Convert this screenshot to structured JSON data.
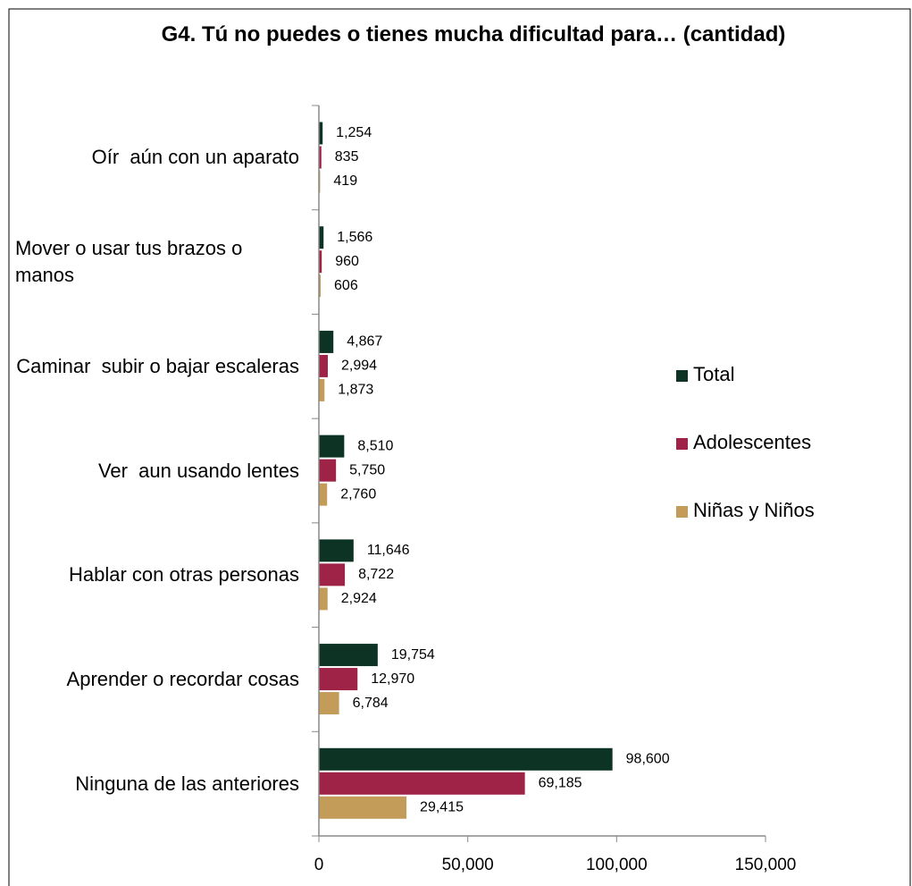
{
  "chart_data": {
    "type": "hbar",
    "title": "G4. Tú no puedes o tienes mucha dificultad para… (cantidad)",
    "categories": [
      "Oír  aún con un aparato",
      "Mover o usar tus brazos o manos",
      "Caminar  subir o bajar escaleras",
      "Ver  aun usando lentes",
      "Hablar con otras personas",
      "Aprender o recordar cosas",
      "Ninguna de las anteriores"
    ],
    "series": [
      {
        "name": "Total",
        "color": "#0d3324",
        "values": [
          1254,
          1566,
          4867,
          8510,
          11646,
          19754,
          98600
        ],
        "value_labels": [
          "1,254",
          "1,566",
          "4,867",
          "8,510",
          "11,646",
          "19,754",
          "98,600"
        ]
      },
      {
        "name": "Adolescentes",
        "color": "#9e2346",
        "values": [
          835,
          960,
          2994,
          5750,
          8722,
          12970,
          69185
        ],
        "value_labels": [
          "835",
          "960",
          "2,994",
          "5,750",
          "8,722",
          "12,970",
          "69,185"
        ]
      },
      {
        "name": "Niñas y Niños",
        "color": "#c39c5a",
        "values": [
          419,
          606,
          1873,
          2760,
          2924,
          6784,
          29415
        ],
        "value_labels": [
          "419",
          "606",
          "1,873",
          "2,760",
          "2,924",
          "6,784",
          "29,415"
        ]
      }
    ],
    "xlim": [
      0,
      150000
    ],
    "xticks": [
      0,
      {
        "value": 50000,
        "label": "50,000"
      },
      {
        "value": 100000,
        "label": "100,000"
      },
      {
        "value": 150000,
        "label": "150,000"
      }
    ],
    "legend": "right"
  }
}
